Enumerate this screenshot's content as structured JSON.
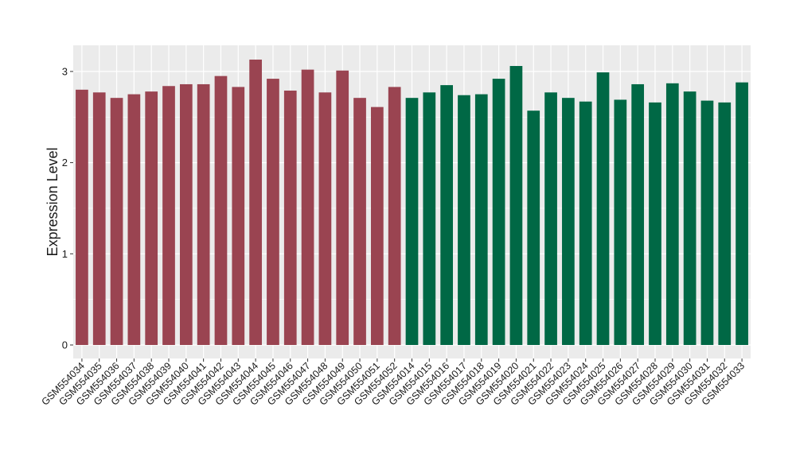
{
  "chart_data": {
    "type": "bar",
    "title": "",
    "xlabel": "",
    "ylabel": "Expression Level",
    "ylim": [
      0,
      3.3
    ],
    "yticks": [
      0,
      1,
      2,
      3
    ],
    "grid": true,
    "legend": "none",
    "colors": {
      "group1": "#9a4451",
      "group2": "#006845",
      "panel": "#ebebeb",
      "gridline": "#ffffff"
    },
    "categories": [
      "GSM554034",
      "GSM554035",
      "GSM554036",
      "GSM554037",
      "GSM554038",
      "GSM554039",
      "GSM554040",
      "GSM554041",
      "GSM554042",
      "GSM554043",
      "GSM554044",
      "GSM554045",
      "GSM554046",
      "GSM554047",
      "GSM554048",
      "GSM554049",
      "GSM554050",
      "GSM554051",
      "GSM554052",
      "GSM554014",
      "GSM554015",
      "GSM554016",
      "GSM554017",
      "GSM554018",
      "GSM554019",
      "GSM554020",
      "GSM554021",
      "GSM554022",
      "GSM554023",
      "GSM554024",
      "GSM554025",
      "GSM554026",
      "GSM554027",
      "GSM554028",
      "GSM554029",
      "GSM554030",
      "GSM554031",
      "GSM554032",
      "GSM554033"
    ],
    "values": [
      2.8,
      2.77,
      2.71,
      2.75,
      2.78,
      2.84,
      2.86,
      2.86,
      2.95,
      2.83,
      3.13,
      2.92,
      2.79,
      3.02,
      2.77,
      3.01,
      2.71,
      2.61,
      2.83,
      2.71,
      2.77,
      2.85,
      2.74,
      2.75,
      2.92,
      3.06,
      2.57,
      2.77,
      2.71,
      2.67,
      2.99,
      2.69,
      2.86,
      2.66,
      2.87,
      2.78,
      2.68,
      2.66,
      2.88
    ],
    "groups": [
      1,
      1,
      1,
      1,
      1,
      1,
      1,
      1,
      1,
      1,
      1,
      1,
      1,
      1,
      1,
      1,
      1,
      1,
      1,
      2,
      2,
      2,
      2,
      2,
      2,
      2,
      2,
      2,
      2,
      2,
      2,
      2,
      2,
      2,
      2,
      2,
      2,
      2,
      2
    ]
  }
}
